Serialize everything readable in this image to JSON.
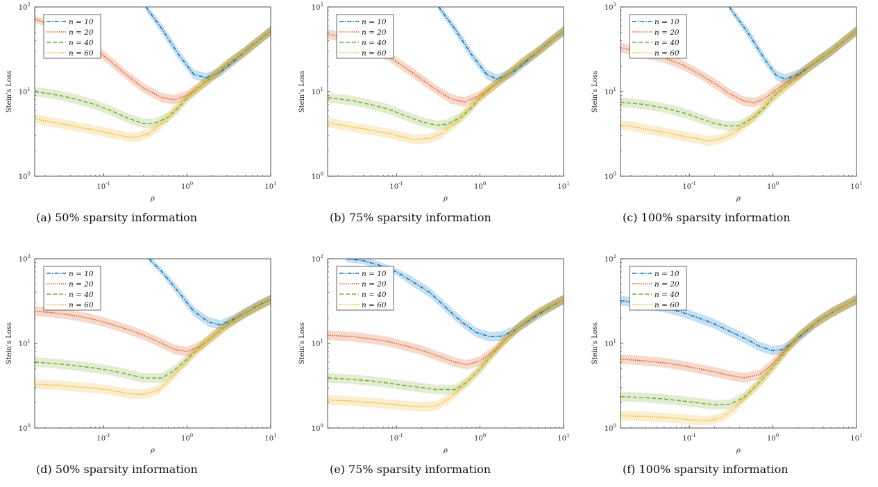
{
  "chart_data": [
    {
      "type": "line",
      "caption": "(a) 50% sparsity information",
      "xlabel": "ρ",
      "ylabel": "Stein's Loss",
      "xscale": "log",
      "yscale": "log",
      "xlim": [
        0.015,
        10
      ],
      "ylim": [
        1,
        100
      ],
      "xticks": [
        "10-1",
        "100",
        "101"
      ],
      "yticks": [
        "100",
        "101",
        "102"
      ],
      "legend_position": "top-left",
      "series": [
        {
          "name": "n = 10",
          "color": "#0072BD",
          "dash": "dashdot",
          "x": [
            0.32,
            0.5,
            0.8,
            1.2,
            1.7,
            2.5,
            4,
            6,
            10
          ],
          "y": [
            100,
            55,
            27,
            16,
            14.5,
            17,
            25,
            35,
            52
          ]
        },
        {
          "name": "n = 20",
          "color": "#D95319",
          "dash": "dotted",
          "x": [
            0.015,
            0.02,
            0.03,
            0.05,
            0.08,
            0.12,
            0.2,
            0.3,
            0.5,
            0.7,
            1,
            1.5,
            2,
            3,
            5,
            10
          ],
          "y": [
            72,
            65,
            55,
            42,
            32,
            23,
            15,
            11,
            8.5,
            8,
            9,
            12,
            15,
            21,
            30,
            52
          ]
        },
        {
          "name": "n = 40",
          "color": "#77AC30",
          "dash": "dashed",
          "x": [
            0.015,
            0.02,
            0.03,
            0.05,
            0.08,
            0.12,
            0.2,
            0.3,
            0.4,
            0.6,
            0.8,
            1,
            1.5,
            2,
            3,
            5,
            10
          ],
          "y": [
            10,
            9.6,
            9,
            8,
            7,
            6,
            4.8,
            4.2,
            4.2,
            5,
            6.5,
            8.5,
            12,
            15,
            21,
            30,
            52
          ]
        },
        {
          "name": "n = 60",
          "color": "#EDB120",
          "dash": "dotted",
          "x": [
            0.015,
            0.02,
            0.03,
            0.05,
            0.08,
            0.12,
            0.2,
            0.25,
            0.35,
            0.5,
            0.7,
            1,
            1.5,
            2,
            3,
            5,
            10
          ],
          "y": [
            4.8,
            4.5,
            4.2,
            3.8,
            3.5,
            3.2,
            2.9,
            2.9,
            3.2,
            4.2,
            6,
            8.5,
            12,
            15,
            21,
            30,
            52
          ]
        }
      ]
    },
    {
      "type": "line",
      "caption": "(b) 75% sparsity information",
      "xlabel": "ρ",
      "ylabel": "Stein's Loss",
      "xscale": "log",
      "yscale": "log",
      "xlim": [
        0.015,
        10
      ],
      "ylim": [
        1,
        100
      ],
      "xticks": [
        "10-1",
        "100",
        "101"
      ],
      "yticks": [
        "100",
        "101",
        "102"
      ],
      "legend_position": "top-left",
      "series": [
        {
          "name": "n = 10",
          "color": "#0072BD",
          "dash": "dashdot",
          "x": [
            0.32,
            0.5,
            0.8,
            1.2,
            1.6,
            2.5,
            4,
            6,
            10
          ],
          "y": [
            100,
            55,
            27,
            16,
            14,
            17,
            25,
            35,
            52
          ]
        },
        {
          "name": "n = 20",
          "color": "#D95319",
          "dash": "dotted",
          "x": [
            0.015,
            0.02,
            0.03,
            0.05,
            0.08,
            0.12,
            0.2,
            0.3,
            0.45,
            0.65,
            1,
            1.5,
            2,
            3,
            5,
            10
          ],
          "y": [
            48,
            45,
            40,
            33,
            26,
            20,
            14,
            10.5,
            8.2,
            7.5,
            9,
            12,
            15,
            21,
            30,
            52
          ]
        },
        {
          "name": "n = 40",
          "color": "#77AC30",
          "dash": "dashed",
          "x": [
            0.015,
            0.02,
            0.03,
            0.05,
            0.08,
            0.12,
            0.2,
            0.3,
            0.4,
            0.6,
            0.8,
            1,
            1.5,
            2,
            3,
            5,
            10
          ],
          "y": [
            8.5,
            8.2,
            7.8,
            7,
            6.2,
            5.3,
            4.4,
            4,
            4.1,
            5,
            6.5,
            8.5,
            12,
            15,
            21,
            30,
            52
          ]
        },
        {
          "name": "n = 60",
          "color": "#EDB120",
          "dash": "dotted",
          "x": [
            0.015,
            0.02,
            0.03,
            0.05,
            0.08,
            0.12,
            0.17,
            0.25,
            0.35,
            0.5,
            0.7,
            1,
            1.5,
            2,
            3,
            5,
            10
          ],
          "y": [
            4.3,
            4.1,
            3.8,
            3.5,
            3.2,
            2.9,
            2.7,
            2.8,
            3.2,
            4.2,
            6,
            8.5,
            12,
            15,
            21,
            30,
            52
          ]
        }
      ]
    },
    {
      "type": "line",
      "caption": "(c) 100% sparsity information",
      "xlabel": "ρ",
      "ylabel": "Stein's Loss",
      "xscale": "log",
      "yscale": "log",
      "xlim": [
        0.015,
        10
      ],
      "ylim": [
        1,
        100
      ],
      "xticks": [
        "10-1",
        "100",
        "101"
      ],
      "yticks": [
        "100",
        "101",
        "102"
      ],
      "legend_position": "top-left",
      "series": [
        {
          "name": "n = 10",
          "color": "#0072BD",
          "dash": "dashdot",
          "x": [
            0.3,
            0.5,
            0.8,
            1.1,
            1.4,
            2,
            3,
            5,
            10
          ],
          "y": [
            100,
            50,
            24,
            15.5,
            14,
            16,
            21,
            30,
            52
          ]
        },
        {
          "name": "n = 20",
          "color": "#D95319",
          "dash": "dotted",
          "x": [
            0.015,
            0.02,
            0.03,
            0.05,
            0.08,
            0.12,
            0.2,
            0.3,
            0.45,
            0.6,
            0.8,
            1,
            1.5,
            2,
            3,
            5,
            10
          ],
          "y": [
            33,
            31,
            28,
            25,
            21,
            17,
            12.5,
            9.5,
            7.7,
            7.4,
            8.3,
            10,
            13,
            15.5,
            21,
            30,
            52
          ]
        },
        {
          "name": "n = 40",
          "color": "#77AC30",
          "dash": "dashed",
          "x": [
            0.015,
            0.02,
            0.03,
            0.05,
            0.08,
            0.12,
            0.2,
            0.3,
            0.4,
            0.6,
            0.8,
            1,
            1.5,
            2,
            3,
            5,
            10
          ],
          "y": [
            7.5,
            7.3,
            7,
            6.4,
            5.7,
            5,
            4.2,
            3.9,
            4,
            5,
            6.5,
            8.5,
            12,
            15,
            21,
            30,
            52
          ]
        },
        {
          "name": "n = 60",
          "color": "#EDB120",
          "dash": "dotted",
          "x": [
            0.015,
            0.02,
            0.03,
            0.05,
            0.08,
            0.12,
            0.17,
            0.25,
            0.35,
            0.5,
            0.7,
            1,
            1.5,
            2,
            3,
            5,
            10
          ],
          "y": [
            4,
            3.9,
            3.6,
            3.3,
            3,
            2.8,
            2.6,
            2.8,
            3.3,
            4.3,
            6,
            8.5,
            12,
            15,
            21,
            30,
            52
          ]
        }
      ]
    },
    {
      "type": "line",
      "caption": "(d) 50% sparsity information",
      "xlabel": "ρ",
      "ylabel": "Stein's Loss",
      "xscale": "log",
      "yscale": "log",
      "xlim": [
        0.015,
        10
      ],
      "ylim": [
        1,
        100
      ],
      "xticks": [
        "10-1",
        "100",
        "101"
      ],
      "yticks": [
        "100",
        "101",
        "102"
      ],
      "legend_position": "top-left",
      "series": [
        {
          "name": "n = 10",
          "color": "#0072BD",
          "dash": "dashdot",
          "x": [
            0.35,
            0.5,
            0.8,
            1.2,
            1.8,
            2.5,
            3.5,
            5,
            7,
            10
          ],
          "y": [
            100,
            70,
            40,
            24,
            18,
            16.5,
            19,
            23,
            28,
            33
          ]
        },
        {
          "name": "n = 20",
          "color": "#D95319",
          "dash": "dotted",
          "x": [
            0.015,
            0.02,
            0.03,
            0.05,
            0.08,
            0.12,
            0.2,
            0.3,
            0.5,
            0.7,
            1,
            1.5,
            2,
            3,
            5,
            10
          ],
          "y": [
            24,
            23.5,
            22.5,
            21,
            19,
            17,
            14.5,
            12.5,
            10,
            8.5,
            8,
            9.5,
            12,
            16.5,
            23,
            33
          ]
        },
        {
          "name": "n = 40",
          "color": "#77AC30",
          "dash": "dashed",
          "x": [
            0.015,
            0.02,
            0.03,
            0.05,
            0.08,
            0.12,
            0.2,
            0.3,
            0.5,
            0.7,
            1,
            1.5,
            2,
            3,
            5,
            10
          ],
          "y": [
            6,
            5.9,
            5.7,
            5.4,
            5.1,
            4.8,
            4.3,
            3.9,
            3.9,
            4.8,
            6.5,
            9.5,
            12,
            16.5,
            23,
            33
          ]
        },
        {
          "name": "n = 60",
          "color": "#EDB120",
          "dash": "dotted",
          "x": [
            0.015,
            0.02,
            0.03,
            0.05,
            0.08,
            0.12,
            0.2,
            0.3,
            0.45,
            0.7,
            1,
            1.5,
            2,
            3,
            5,
            10
          ],
          "y": [
            3.3,
            3.25,
            3.2,
            3.05,
            2.95,
            2.8,
            2.55,
            2.5,
            2.8,
            4.2,
            6.2,
            9.5,
            12,
            16.5,
            23,
            33
          ]
        }
      ]
    },
    {
      "type": "line",
      "caption": "(e) 75% sparsity information",
      "xlabel": "ρ",
      "ylabel": "Stein's Loss",
      "xscale": "log",
      "yscale": "log",
      "xlim": [
        0.015,
        10
      ],
      "ylim": [
        1,
        100
      ],
      "xticks": [
        "10-1",
        "100",
        "101"
      ],
      "yticks": [
        "100",
        "101",
        "102"
      ],
      "legend_position": "top-left",
      "series": [
        {
          "name": "n = 10",
          "color": "#0072BD",
          "dash": "dashdot",
          "x": [
            0.025,
            0.04,
            0.06,
            0.1,
            0.15,
            0.25,
            0.4,
            0.6,
            0.9,
            1.3,
            1.8,
            2.5,
            3.5,
            5,
            7,
            10
          ],
          "y": [
            100,
            95,
            85,
            70,
            55,
            40,
            26,
            18,
            13.5,
            12,
            12.2,
            14,
            17.5,
            22,
            27,
            33
          ]
        },
        {
          "name": "n = 20",
          "color": "#D95319",
          "dash": "dotted",
          "x": [
            0.015,
            0.02,
            0.03,
            0.05,
            0.08,
            0.12,
            0.2,
            0.3,
            0.5,
            0.7,
            1,
            1.5,
            2,
            3,
            5,
            10
          ],
          "y": [
            12.5,
            12.3,
            12,
            11.3,
            10.5,
            9.5,
            8.3,
            7.2,
            6,
            5.6,
            6.2,
            8.3,
            11,
            16,
            23,
            33
          ]
        },
        {
          "name": "n = 40",
          "color": "#77AC30",
          "dash": "dashed",
          "x": [
            0.015,
            0.02,
            0.03,
            0.05,
            0.08,
            0.12,
            0.2,
            0.3,
            0.5,
            0.7,
            1,
            1.5,
            2,
            3,
            5,
            10
          ],
          "y": [
            3.9,
            3.85,
            3.75,
            3.6,
            3.4,
            3.2,
            3,
            2.85,
            2.85,
            3.5,
            5,
            8,
            11,
            16,
            23,
            33
          ]
        },
        {
          "name": "n = 60",
          "color": "#EDB120",
          "dash": "dotted",
          "x": [
            0.015,
            0.02,
            0.03,
            0.05,
            0.08,
            0.12,
            0.2,
            0.3,
            0.45,
            0.7,
            1,
            1.5,
            2,
            3,
            5,
            10
          ],
          "y": [
            2.15,
            2.12,
            2.08,
            2,
            1.92,
            1.85,
            1.78,
            1.82,
            2.3,
            3.5,
            5,
            8,
            11,
            16,
            23,
            33
          ]
        }
      ]
    },
    {
      "type": "line",
      "caption": "(f) 100% sparsity information",
      "xlabel": "ρ",
      "ylabel": "Stein's Loss",
      "xscale": "log",
      "yscale": "log",
      "xlim": [
        0.015,
        10
      ],
      "ylim": [
        1,
        100
      ],
      "xticks": [
        "10-1",
        "100",
        "101"
      ],
      "yticks": [
        "100",
        "101",
        "102"
      ],
      "legend_position": "top-left",
      "series": [
        {
          "name": "n = 10",
          "color": "#0072BD",
          "dash": "dashdot",
          "x": [
            0.015,
            0.02,
            0.03,
            0.05,
            0.08,
            0.12,
            0.2,
            0.3,
            0.5,
            0.7,
            1,
            1.3,
            1.8,
            2.5,
            3.5,
            5,
            10
          ],
          "y": [
            32,
            31,
            29,
            26.5,
            23.5,
            20.5,
            17,
            14,
            11,
            9.2,
            8.2,
            8.5,
            10.5,
            14,
            18.5,
            23,
            33
          ]
        },
        {
          "name": "n = 20",
          "color": "#D95319",
          "dash": "dotted",
          "x": [
            0.015,
            0.02,
            0.03,
            0.05,
            0.08,
            0.12,
            0.2,
            0.3,
            0.45,
            0.7,
            1,
            1.5,
            2,
            3,
            5,
            10
          ],
          "y": [
            6.5,
            6.4,
            6.2,
            5.9,
            5.5,
            5.1,
            4.6,
            4.2,
            3.9,
            4.3,
            5.8,
            9,
            12,
            16.5,
            23,
            33
          ]
        },
        {
          "name": "n = 40",
          "color": "#77AC30",
          "dash": "dashed",
          "x": [
            0.015,
            0.02,
            0.03,
            0.05,
            0.08,
            0.12,
            0.2,
            0.3,
            0.45,
            0.7,
            1,
            1.5,
            2,
            3,
            5,
            10
          ],
          "y": [
            2.35,
            2.33,
            2.28,
            2.2,
            2.1,
            2,
            1.88,
            1.9,
            2.3,
            3.5,
            5.2,
            8.5,
            12,
            16.5,
            23,
            33
          ]
        },
        {
          "name": "n = 60",
          "color": "#EDB120",
          "dash": "dotted",
          "x": [
            0.015,
            0.02,
            0.03,
            0.05,
            0.08,
            0.12,
            0.17,
            0.25,
            0.35,
            0.5,
            0.7,
            1,
            1.5,
            2,
            3,
            5,
            10
          ],
          "y": [
            1.4,
            1.39,
            1.37,
            1.33,
            1.28,
            1.24,
            1.22,
            1.35,
            1.7,
            2.5,
            3.5,
            5.2,
            8.5,
            12,
            16.5,
            23,
            33
          ]
        }
      ]
    }
  ]
}
